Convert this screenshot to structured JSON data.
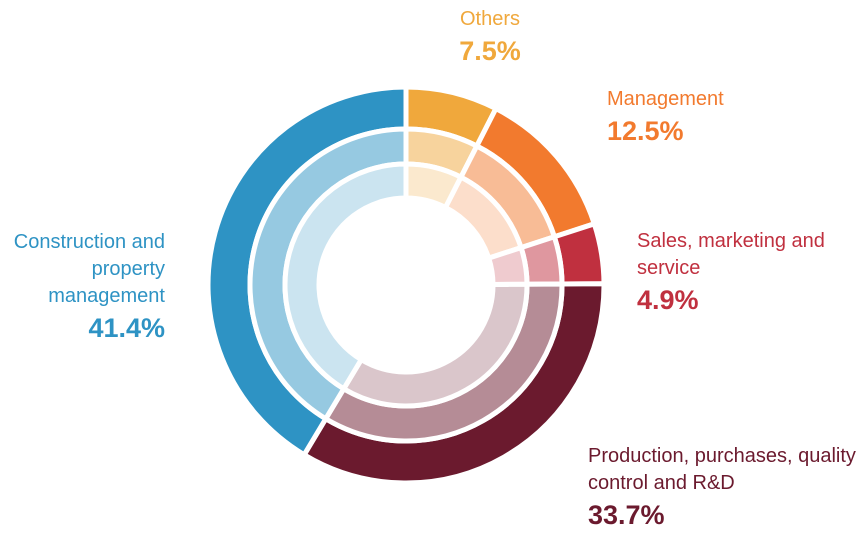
{
  "chart_data": {
    "type": "pie",
    "categories": [
      "Others",
      "Management",
      "Sales, marketing and service",
      "Production, purchases, quality control and R&D",
      "Construction and property management"
    ],
    "values": [
      7.5,
      12.5,
      4.9,
      33.7,
      41.4
    ],
    "value_labels": [
      "7.5%",
      "12.5%",
      "4.9%",
      "33.7%",
      "41.4%"
    ],
    "colors": [
      "#f0a83c",
      "#f27a2e",
      "#c0303f",
      "#6b1a2e",
      "#2e93c4"
    ]
  }
}
